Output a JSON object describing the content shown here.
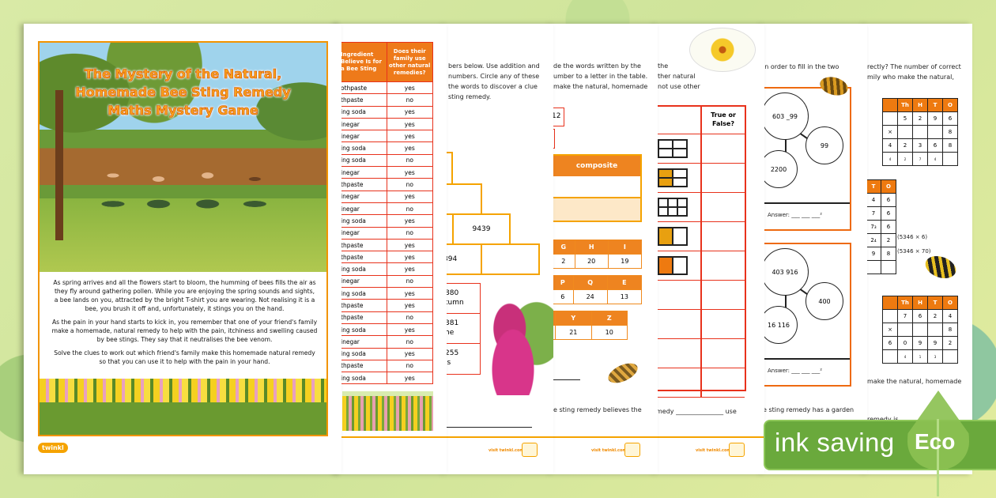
{
  "cover": {
    "title_lines": [
      "The Mystery of the Natural,",
      "Homemade Bee Sting Remedy",
      "Maths Mystery Game"
    ],
    "paragraphs": [
      [
        "As spring arrives and all the flowers start to bloom, the humming of bees fills the air as",
        "they fly around gathering pollen. While you are enjoying the spring sounds and sights,",
        "a bee lands on you, attracted by the bright T-shirt you are wearing. Not realising it is a",
        "bee, you brush it off and, unfortunately, it stings you on the hand."
      ],
      [
        "As the pain in your hand starts to kick in, you remember that one of your friend's family",
        "make a homemade, natural remedy to help with the pain, itchiness and swelling caused",
        "by bee stings. They say that it neutralises the bee venom."
      ],
      [
        "Solve the clues to work out which friend's family make this homemade natural remedy",
        "so that you can use it to help with the pain in your hand."
      ]
    ],
    "logo": "twinkl"
  },
  "table_page": {
    "headers": [
      "Ingredient Believe Is for a Bee Sting",
      "Does their family use other natural remedies?"
    ],
    "rows": [
      [
        "othpaste",
        "yes"
      ],
      [
        "thpaste",
        "no"
      ],
      [
        "ing soda",
        "yes"
      ],
      [
        "inegar",
        "yes"
      ],
      [
        "inegar",
        "yes"
      ],
      [
        "ing soda",
        "yes"
      ],
      [
        "ing soda",
        "no"
      ],
      [
        "inegar",
        "yes"
      ],
      [
        "thpaste",
        "no"
      ],
      [
        "inegar",
        "yes"
      ],
      [
        "inegar",
        "no"
      ],
      [
        "ing soda",
        "yes"
      ],
      [
        "inegar",
        "no"
      ],
      [
        "thpaste",
        "yes"
      ],
      [
        "thpaste",
        "yes"
      ],
      [
        "ing soda",
        "yes"
      ],
      [
        "inegar",
        "no"
      ],
      [
        "ing soda",
        "yes"
      ],
      [
        "thpaste",
        "yes"
      ],
      [
        "thpaste",
        "no"
      ],
      [
        "ing soda",
        "yes"
      ],
      [
        "inegar",
        "no"
      ],
      [
        "ing soda",
        "yes"
      ],
      [
        "thpaste",
        "no"
      ],
      [
        "ing soda",
        "yes"
      ]
    ]
  },
  "pyramid_page": {
    "intro": [
      "bers below. Use addition and",
      "numbers. Circle any of these",
      "the words to discover a clue",
      "sting remedy."
    ],
    "bricks": [
      "9439",
      "394"
    ],
    "clues": [
      [
        "880",
        "tumn"
      ],
      [
        "381",
        "he"
      ],
      [
        "255",
        "is"
      ]
    ],
    "footer": "visit twinkl.com"
  },
  "code_page": {
    "intro": [
      "de the words written by the",
      "umber to a letter in the table.",
      "make the natural, homemade"
    ],
    "clue_boxes": [
      "12",
      ""
    ],
    "composite_header": "composite",
    "letter_tables": [
      {
        "letters": [
          "G",
          "H",
          "I"
        ],
        "values": [
          "2",
          "20",
          "19"
        ]
      },
      {
        "letters": [
          "P",
          "Q",
          "E"
        ],
        "values": [
          "6",
          "24",
          "13"
        ]
      },
      {
        "letters": [
          "",
          "Y",
          "Z"
        ],
        "values": [
          "",
          "21",
          "10"
        ]
      }
    ],
    "bottom_text": "e sting remedy believes the",
    "footer": "visit twinkl.com"
  },
  "fraction_page": {
    "intro": [
      "the",
      "ther natural",
      "not use other"
    ],
    "header": "True or False?",
    "bottom_text": "medy _______________ use",
    "footer": "visit twinkl.com"
  },
  "diagram_page": {
    "intro": "in order to fill in the two",
    "diagrams": [
      {
        "top": "603 _99",
        "right": "99",
        "bottom": "2200",
        "answer": "Answer: ___ ___ ___²"
      },
      {
        "top": "403 916",
        "right": "400",
        "bottom": "16 116",
        "answer": "Answer: ___ ___ ___²"
      }
    ],
    "bottom_text": "e sting remedy has a garden"
  },
  "mult_page": {
    "intro": [
      "rectly? The number of correct",
      "mily who make the natural,"
    ],
    "grid1": [
      [
        "",
        "Th",
        "H",
        "T",
        "O"
      ],
      [
        "",
        "5",
        "2",
        "9",
        "6"
      ],
      [
        "×",
        "",
        "",
        "",
        "8"
      ],
      [
        "4",
        "2",
        "3",
        "6",
        "8"
      ],
      [
        "4",
        "2",
        "7",
        "4",
        ""
      ]
    ],
    "grid2": [
      [
        "T",
        "O"
      ],
      [
        "4",
        "6"
      ],
      [
        "7",
        "6"
      ],
      [
        "7₃",
        "6"
      ],
      [
        "2₄",
        "2"
      ],
      [
        "9",
        "8"
      ],
      [
        "",
        ""
      ]
    ],
    "grid2_notes": [
      "(5346 × 6)",
      "(5346 × 70)"
    ],
    "grid3": [
      [
        "",
        "Th",
        "H",
        "T",
        "O"
      ],
      [
        "",
        "7",
        "6",
        "2",
        "4"
      ],
      [
        "×",
        "",
        "",
        "",
        "8"
      ],
      [
        "6",
        "0",
        "9",
        "9",
        "2"
      ],
      [
        "",
        "4",
        "1",
        "3",
        ""
      ]
    ],
    "bottom_text": [
      "make the natural, homemade",
      "remedy is"
    ]
  },
  "badge": {
    "label": "ink saving",
    "eco": "Eco",
    "color": "#6aa93c"
  }
}
